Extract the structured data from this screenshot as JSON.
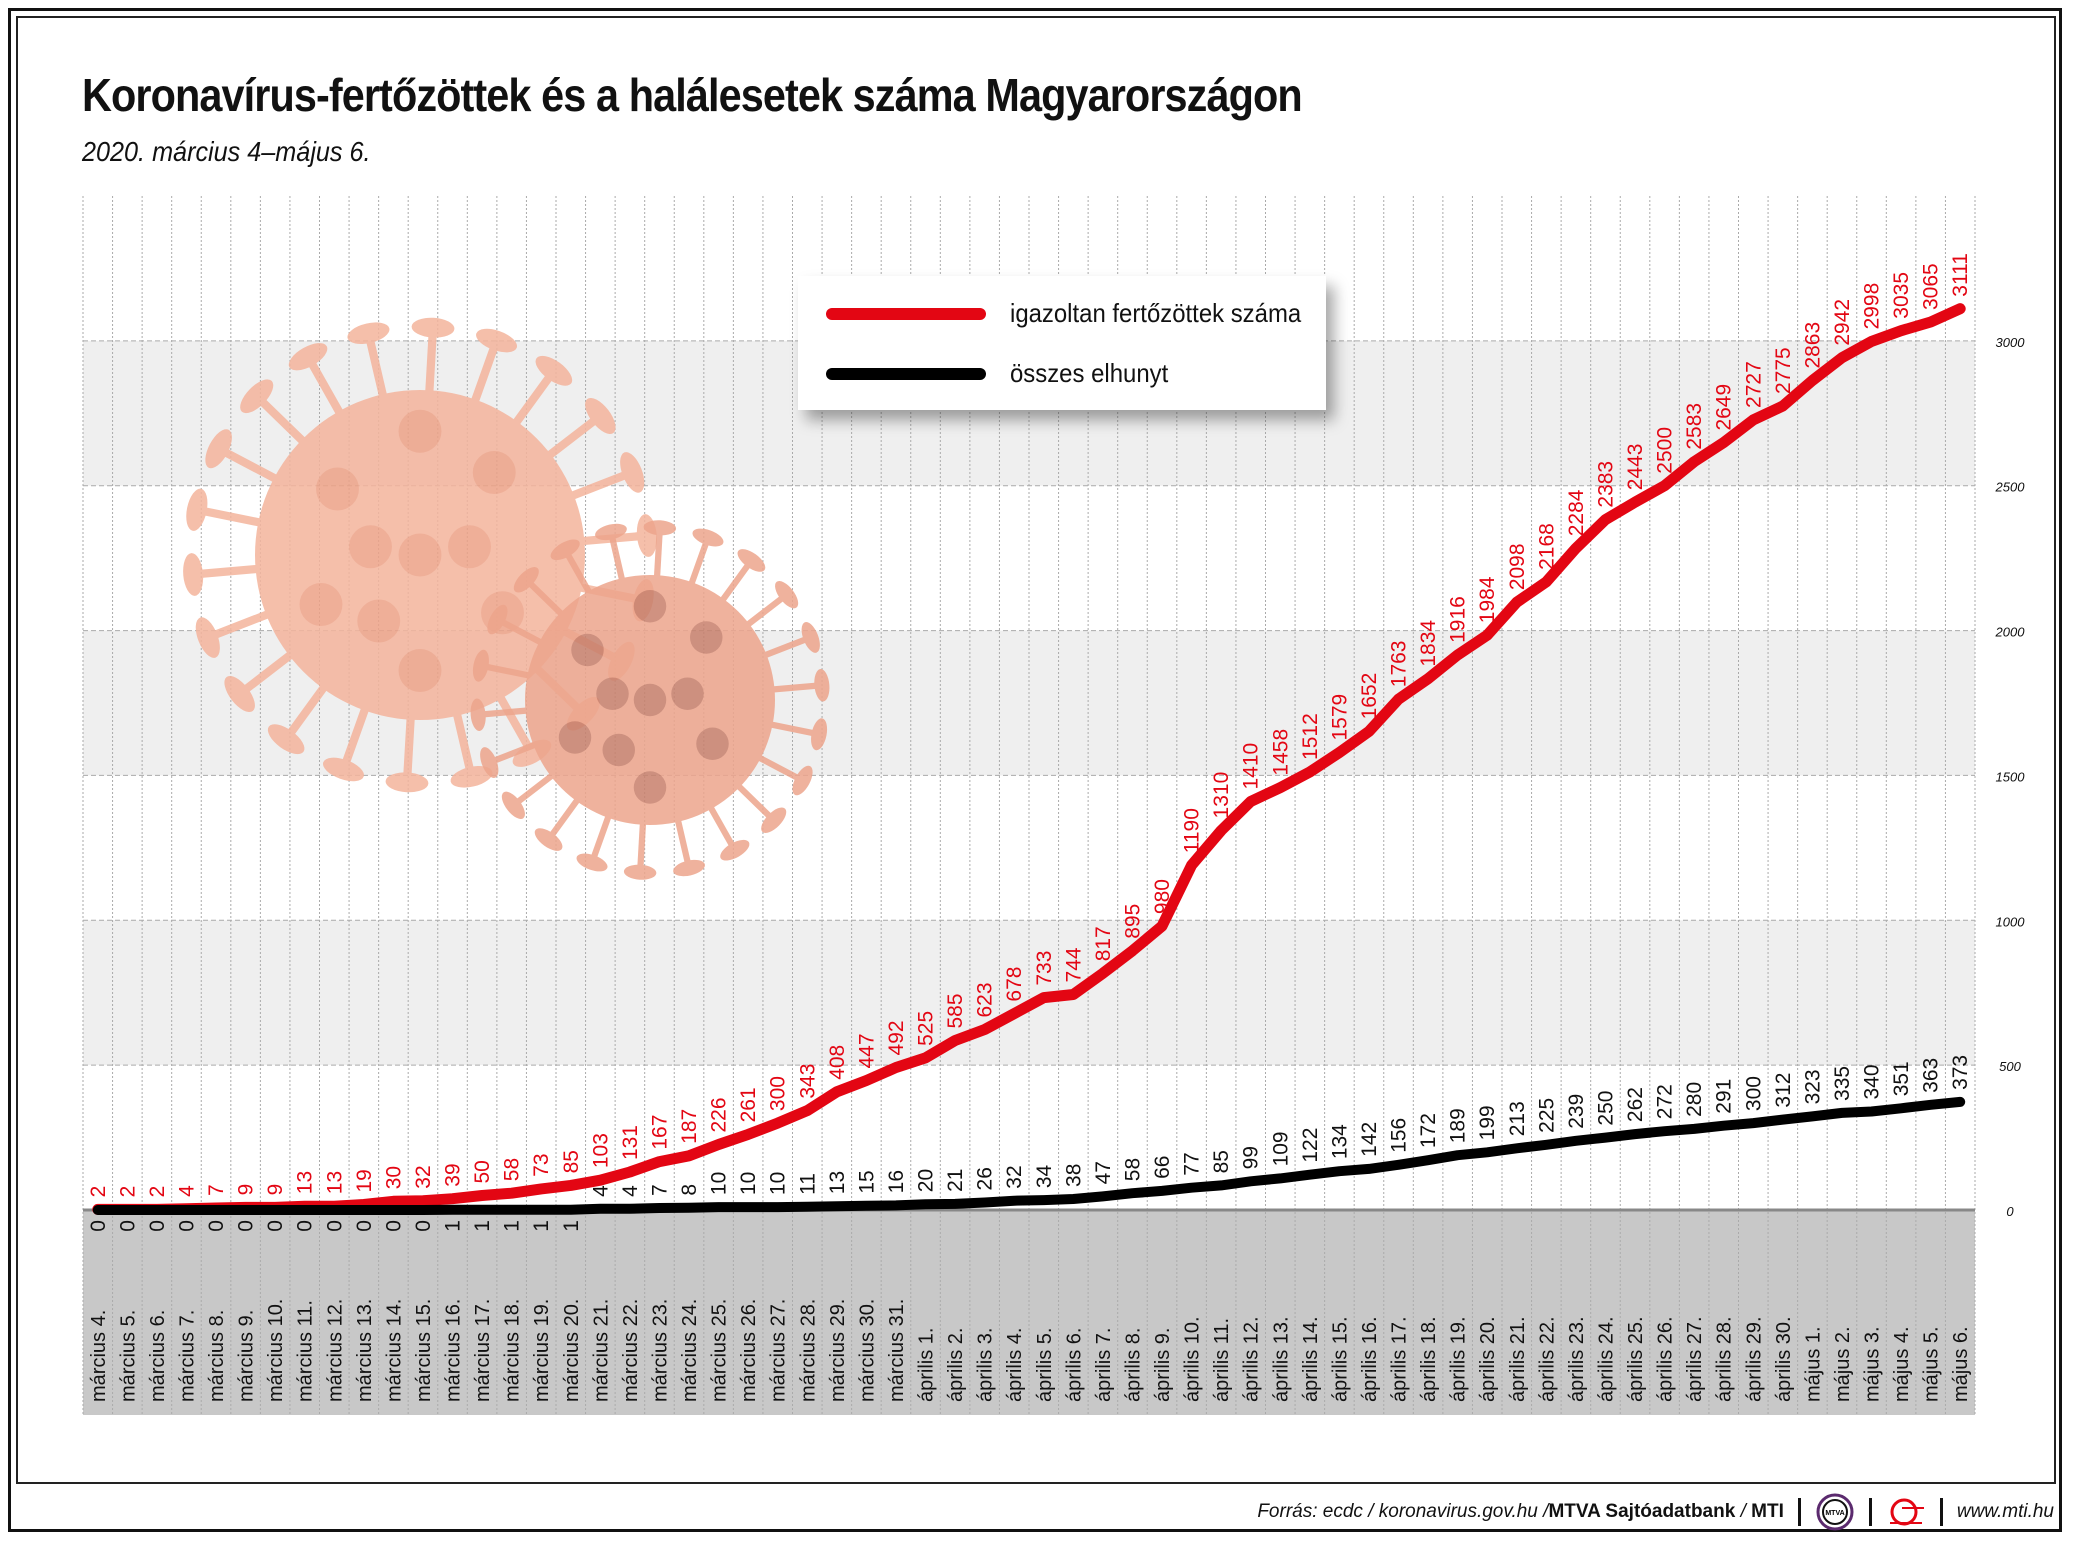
{
  "title": "Koronavírus-fertőzöttek és a halálesetek száma Magyarországon",
  "subtitle": "2020. március 4–május 6.",
  "legend": [
    {
      "label": "igazoltan fertőzöttek száma",
      "color": "#e30613"
    },
    {
      "label": "összes elhunyt",
      "color": "#000000"
    }
  ],
  "footer": {
    "source_prefix": "Forrás: ecdc / koronavirus.gov.hu / ",
    "source_bold": "MTVA Sajtóadatbank",
    "source_sep": " / ",
    "source_mti": "MTI",
    "logo_mtva": "MTVA",
    "website": "www.mti.hu"
  },
  "colors": {
    "infected": "#e30613",
    "deaths": "#000000",
    "band": "#efefef",
    "below_axis": "#c8c8c8",
    "virus": "#f2a98c"
  },
  "chart_data": {
    "type": "line",
    "title": "Koronavírus-fertőzöttek és a halálesetek száma Magyarországon",
    "subtitle": "2020. március 4–május 6.",
    "ylim": [
      0,
      3500
    ],
    "yticks": [
      "0",
      "500",
      "1000",
      "1500",
      "2000",
      "2500",
      "3000"
    ],
    "grid": true,
    "legend_position": "top-center",
    "categories": [
      "március 4.",
      "március 5.",
      "március 6.",
      "március 7.",
      "március 8.",
      "március 9.",
      "március 10.",
      "március 11.",
      "március 12.",
      "március 13.",
      "március 14.",
      "március 15.",
      "március 16.",
      "március 17.",
      "március 18.",
      "március 19.",
      "március 20.",
      "március 21.",
      "március 22.",
      "március 23.",
      "március 24.",
      "március 25.",
      "március 26.",
      "március 27.",
      "március 28.",
      "március 29.",
      "március 30.",
      "március 31.",
      "április 1.",
      "április 2.",
      "április 3.",
      "április 4.",
      "április 5.",
      "április 6.",
      "április 7.",
      "április 8.",
      "április 9.",
      "április 10.",
      "április 11.",
      "április 12.",
      "április 13.",
      "április 14.",
      "április 15.",
      "április 16.",
      "április 17.",
      "április 18.",
      "április 19.",
      "április 20.",
      "április 21.",
      "április 22.",
      "április 23.",
      "április 24.",
      "április 25.",
      "április 26.",
      "április 27.",
      "április 28.",
      "április 29.",
      "április 30.",
      "május 1.",
      "május 2.",
      "május 3.",
      "május 4.",
      "május 5.",
      "május 6."
    ],
    "series": [
      {
        "name": "igazoltan fertőzöttek száma",
        "values": [
          2,
          2,
          2,
          4,
          7,
          9,
          9,
          13,
          13,
          19,
          30,
          32,
          39,
          50,
          58,
          73,
          85,
          103,
          131,
          167,
          187,
          226,
          261,
          300,
          343,
          408,
          447,
          492,
          525,
          585,
          623,
          678,
          733,
          744,
          817,
          895,
          980,
          1190,
          1310,
          1410,
          1458,
          1512,
          1579,
          1652,
          1763,
          1834,
          1916,
          1984,
          2098,
          2168,
          2284,
          2383,
          2443,
          2500,
          2583,
          2649,
          2727,
          2775,
          2863,
          2942,
          2998,
          3035,
          3065,
          3111
        ]
      },
      {
        "name": "összes elhunyt",
        "values": [
          0,
          0,
          0,
          0,
          0,
          0,
          0,
          0,
          0,
          0,
          0,
          0,
          1,
          1,
          1,
          1,
          1,
          4,
          4,
          7,
          8,
          10,
          10,
          10,
          11,
          13,
          15,
          16,
          20,
          21,
          26,
          32,
          34,
          38,
          47,
          58,
          66,
          77,
          85,
          99,
          109,
          122,
          134,
          142,
          156,
          172,
          189,
          199,
          213,
          225,
          239,
          250,
          262,
          272,
          280,
          291,
          300,
          312,
          323,
          335,
          340,
          351,
          363,
          373
        ]
      }
    ]
  }
}
